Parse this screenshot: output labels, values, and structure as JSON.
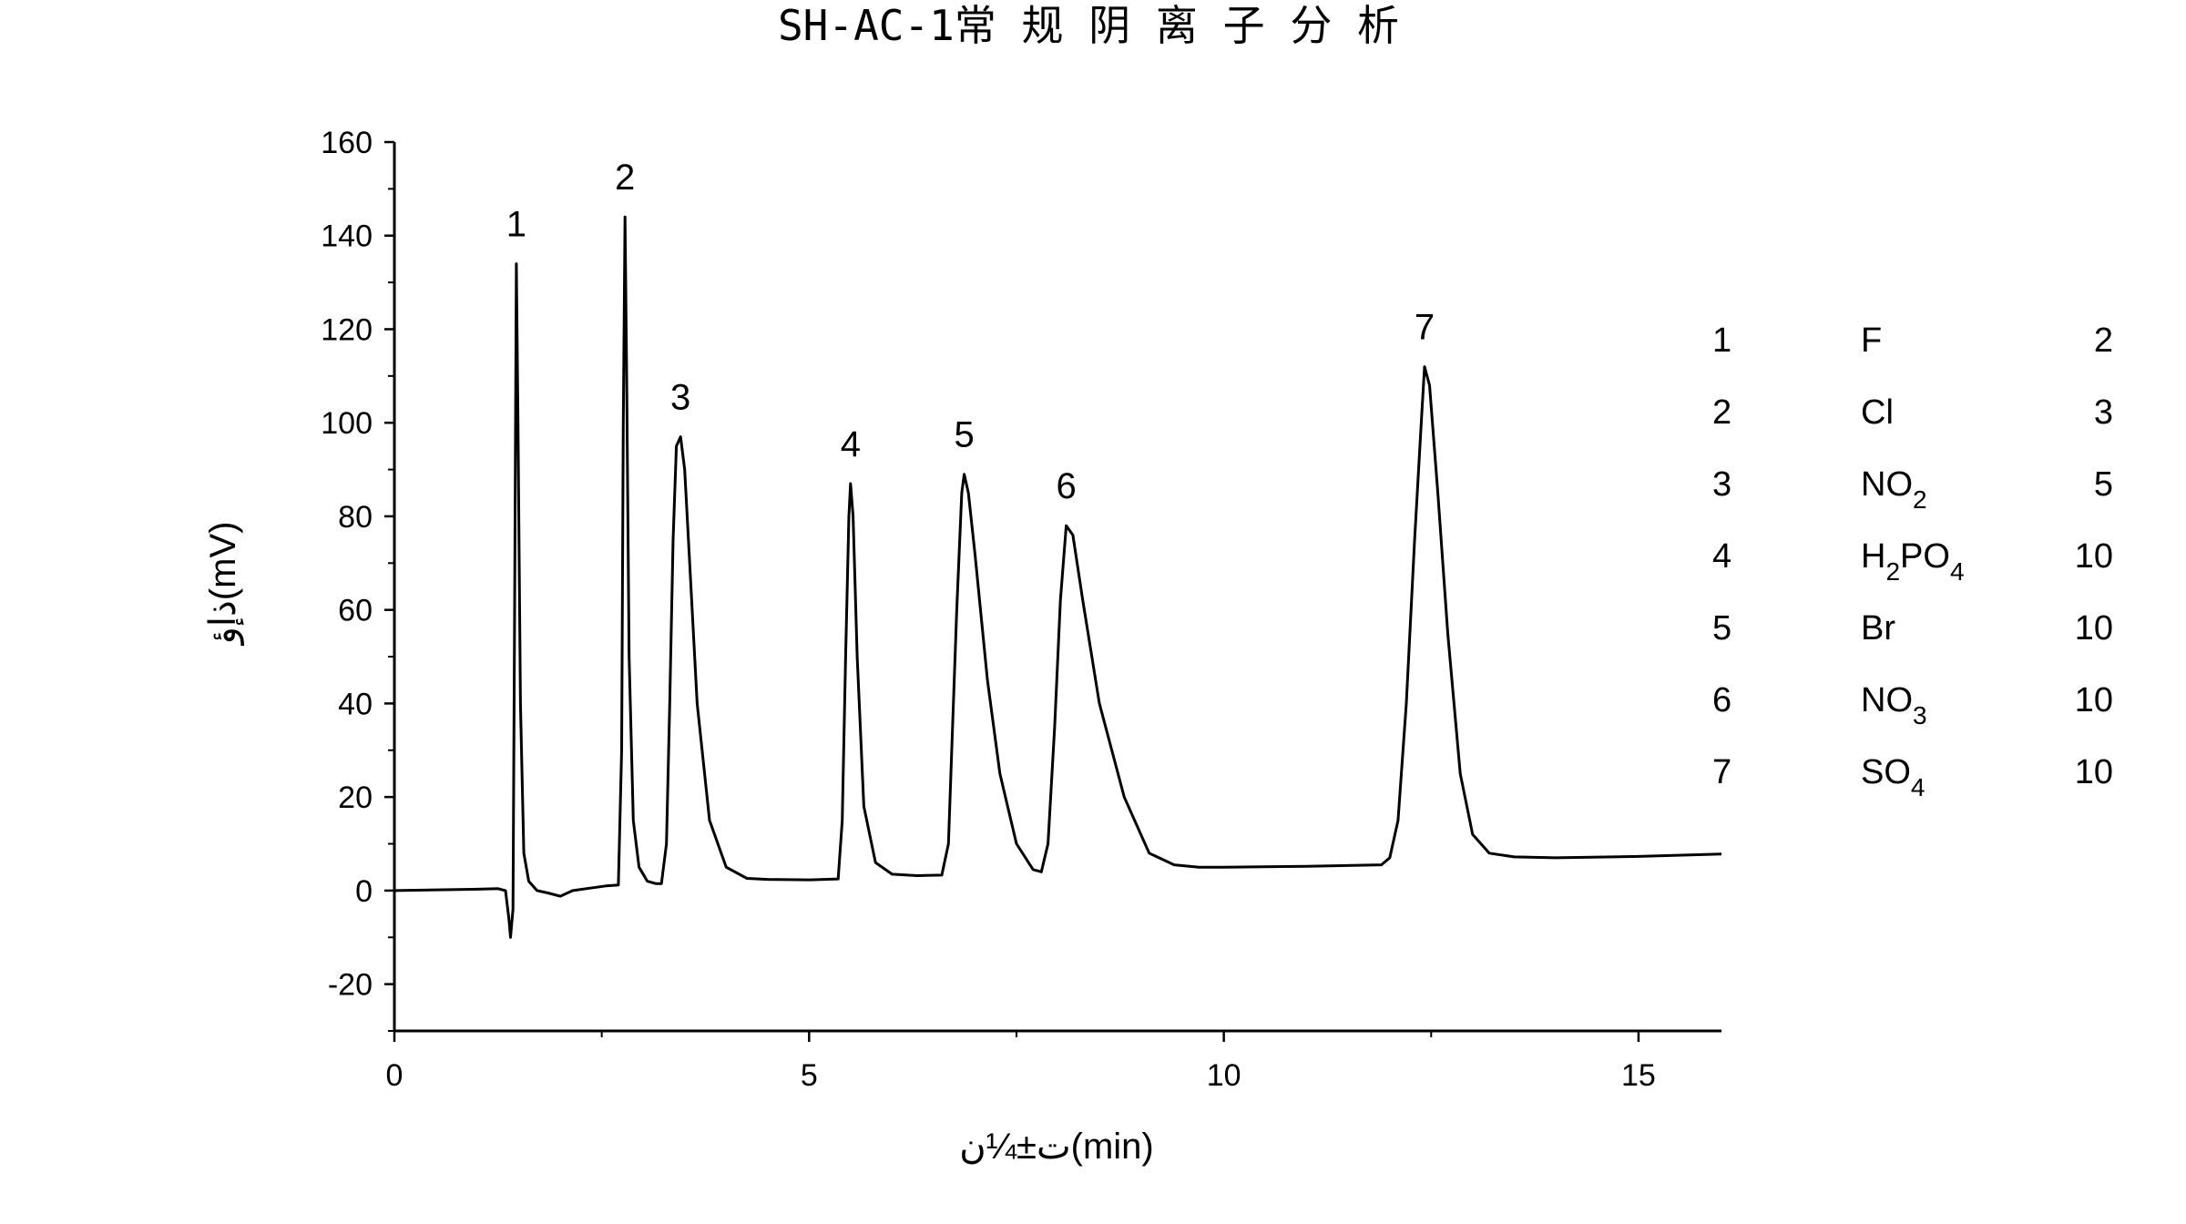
{
  "chart_data": {
    "type": "line",
    "title": "SH-AC-1常 规 阴 离 子 分 析",
    "xlabel": "ت±¼ن(min)",
    "ylabel": "ذإؤ(mV)",
    "xlim": [
      0,
      16
    ],
    "ylim": [
      -30,
      160
    ],
    "x_ticks": [
      "0",
      "5",
      "10",
      "15"
    ],
    "x_tick_values": [
      0,
      5,
      10,
      15
    ],
    "y_ticks": [
      "-20",
      "0",
      "20",
      "40",
      "60",
      "80",
      "100",
      "120",
      "140",
      "160"
    ],
    "y_tick_values": [
      -20,
      0,
      20,
      40,
      60,
      80,
      100,
      120,
      140,
      160
    ],
    "grid": false,
    "peaks": [
      {
        "label": "1",
        "time": 1.47,
        "height": 134
      },
      {
        "label": "2",
        "time": 2.78,
        "height": 144
      },
      {
        "label": "3",
        "time": 3.45,
        "height": 97
      },
      {
        "label": "4",
        "time": 5.5,
        "height": 87
      },
      {
        "label": "5",
        "time": 6.87,
        "height": 89
      },
      {
        "label": "6",
        "time": 8.1,
        "height": 78
      },
      {
        "label": "7",
        "time": 12.42,
        "height": 112
      }
    ],
    "trace": {
      "x": [
        0.0,
        1.0,
        1.25,
        1.34,
        1.38,
        1.4,
        1.43,
        1.45,
        1.47,
        1.49,
        1.52,
        1.56,
        1.62,
        1.72,
        1.85,
        2.0,
        2.15,
        2.35,
        2.55,
        2.7,
        2.74,
        2.76,
        2.78,
        2.8,
        2.83,
        2.88,
        2.95,
        3.05,
        3.15,
        3.22,
        3.28,
        3.32,
        3.36,
        3.4,
        3.45,
        3.5,
        3.56,
        3.65,
        3.8,
        4.0,
        4.25,
        4.5,
        5.0,
        5.35,
        5.4,
        5.44,
        5.48,
        5.5,
        5.53,
        5.58,
        5.66,
        5.8,
        6.0,
        6.3,
        6.6,
        6.68,
        6.72,
        6.78,
        6.84,
        6.87,
        6.92,
        7.0,
        7.15,
        7.3,
        7.5,
        7.7,
        7.8,
        7.88,
        7.96,
        8.03,
        8.1,
        8.18,
        8.3,
        8.5,
        8.8,
        9.1,
        9.4,
        9.7,
        10.0,
        11.0,
        11.9,
        12.0,
        12.1,
        12.2,
        12.3,
        12.38,
        12.42,
        12.48,
        12.58,
        12.7,
        12.85,
        13.0,
        13.2,
        13.5,
        14.0,
        15.0,
        16.0
      ],
      "y": [
        0.0,
        0.3,
        0.4,
        0.0,
        -6.0,
        -10.0,
        -4.0,
        60.0,
        134.0,
        100.0,
        40.0,
        8.0,
        2.0,
        0.0,
        -0.5,
        -1.2,
        0.0,
        0.5,
        1.0,
        1.2,
        30.0,
        100.0,
        144.0,
        110.0,
        50.0,
        15.0,
        5.0,
        2.0,
        1.5,
        1.5,
        10.0,
        40.0,
        75.0,
        95.0,
        97.0,
        90.0,
        70.0,
        40.0,
        15.0,
        5.0,
        2.6,
        2.4,
        2.3,
        2.5,
        15.0,
        50.0,
        80.0,
        87.0,
        80.0,
        50.0,
        18.0,
        6.0,
        3.5,
        3.2,
        3.3,
        10.0,
        30.0,
        60.0,
        85.0,
        89.0,
        85.0,
        72.0,
        45.0,
        25.0,
        10.0,
        4.5,
        4.0,
        10.0,
        35.0,
        62.0,
        78.0,
        76.0,
        62.0,
        40.0,
        20.0,
        8.0,
        5.5,
        5.0,
        5.0,
        5.2,
        5.5,
        7.0,
        15.0,
        40.0,
        75.0,
        100.0,
        112.0,
        108.0,
        85.0,
        55.0,
        25.0,
        12.0,
        8.0,
        7.2,
        7.0,
        7.3,
        7.8
      ]
    },
    "legend_table": [
      {
        "num": "1",
        "ion": "F",
        "sub": "",
        "ion2": "",
        "sub2": "",
        "conc": "2"
      },
      {
        "num": "2",
        "ion": "Cl",
        "sub": "",
        "ion2": "",
        "sub2": "",
        "conc": "3"
      },
      {
        "num": "3",
        "ion": "NO",
        "sub": "2",
        "ion2": "",
        "sub2": "",
        "conc": "5"
      },
      {
        "num": "4",
        "ion": "H",
        "sub": "2",
        "ion2": "PO",
        "sub2": "4",
        "conc": "10"
      },
      {
        "num": "5",
        "ion": "Br",
        "sub": "",
        "ion2": "",
        "sub2": "",
        "conc": "10"
      },
      {
        "num": "6",
        "ion": "NO",
        "sub": "3",
        "ion2": "",
        "sub2": "",
        "conc": "10"
      },
      {
        "num": "7",
        "ion": "SO",
        "sub": "4",
        "ion2": "",
        "sub2": "",
        "conc": "10"
      }
    ]
  }
}
